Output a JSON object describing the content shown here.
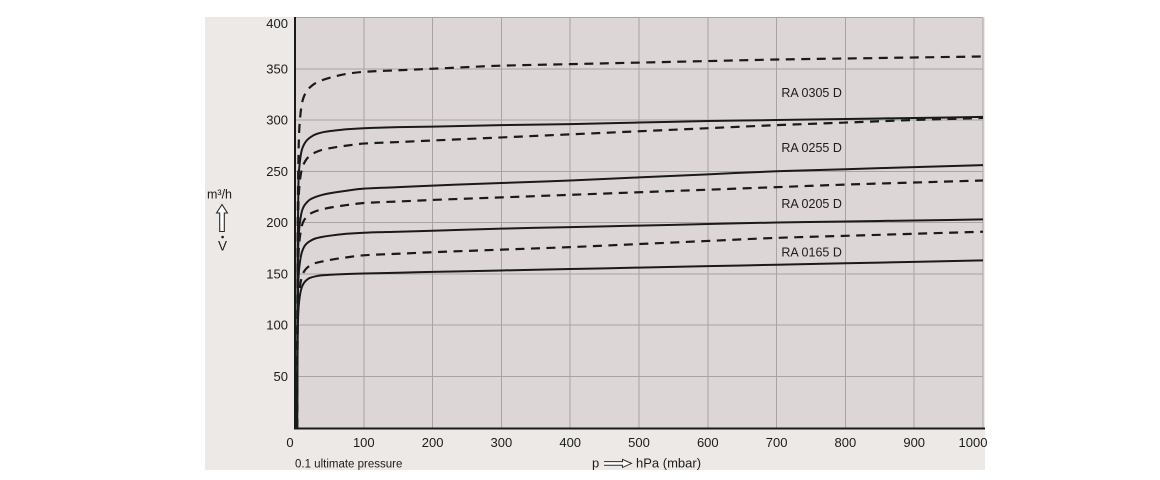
{
  "chart_data": {
    "type": "line",
    "title": "",
    "xlabel_symbol": "p",
    "xlabel_unit": "hPa (mbar)",
    "ylabel_unit": "m³/h",
    "ylabel_symbol": "V",
    "footnote": "0.1 ultimate pressure",
    "xlim": [
      0,
      1000
    ],
    "ylim": [
      0,
      400
    ],
    "x_ticks": [
      0,
      100,
      200,
      300,
      400,
      500,
      600,
      700,
      800,
      900,
      1000
    ],
    "y_ticks": [
      50,
      100,
      150,
      200,
      250,
      300,
      350,
      400
    ],
    "grid": true,
    "legend_position": "inline-labels",
    "colors": {
      "page_background": "#ffffff",
      "band_background": "#ece9e6",
      "plot_background": "#ddd6d6",
      "grid": "#a9a3a4",
      "axis": "#1a1a1a",
      "curve": "#1a1a1a",
      "text": "#1c1c1c"
    },
    "p_points": [
      3,
      3.5,
      4,
      5,
      6,
      8,
      10,
      13,
      17,
      22,
      30,
      40,
      55,
      75,
      100,
      150,
      200,
      300,
      400,
      500,
      600,
      700,
      800,
      900,
      1000
    ],
    "series": [
      {
        "name": "RA 0305 D (dashed)",
        "model": "RA 0305 D",
        "style": "dashed",
        "v": [
          0,
          120,
          200,
          262,
          288,
          306,
          316,
          323,
          328,
          332,
          336,
          339,
          342,
          345,
          347,
          348.5,
          350,
          353,
          354.5,
          356,
          357.5,
          359,
          360,
          361,
          362
        ]
      },
      {
        "name": "RA 0305 D (solid)",
        "model": "RA 0305 D",
        "style": "solid",
        "v": [
          0,
          110,
          180,
          238,
          252,
          264,
          271,
          276,
          280,
          283,
          286,
          288,
          289.5,
          291,
          292,
          293,
          293.5,
          295,
          296,
          297.5,
          299,
          300,
          301,
          302,
          303
        ]
      },
      {
        "name": "RA 0255 D (dashed)",
        "model": "RA 0255 D",
        "style": "dashed",
        "v": [
          0,
          100,
          165,
          218,
          232,
          245,
          252,
          257.5,
          262,
          265.5,
          268.5,
          271,
          273,
          275,
          277,
          278.5,
          280,
          283,
          286,
          289,
          292,
          295,
          297.5,
          300,
          302
        ]
      },
      {
        "name": "RA 0255 D (solid)",
        "model": "RA 0255 D",
        "style": "solid",
        "v": [
          0,
          90,
          150,
          182,
          193,
          204,
          211,
          216,
          219.5,
          222.5,
          225,
          227,
          229,
          231,
          233,
          234.5,
          236,
          238.5,
          241,
          244,
          247,
          250,
          252,
          254,
          256
        ]
      },
      {
        "name": "RA 0205 D (dashed)",
        "model": "RA 0205 D",
        "style": "dashed",
        "v": [
          0,
          80,
          138,
          168,
          179,
          190,
          197,
          202,
          205.5,
          208.5,
          211,
          213,
          215,
          217,
          219,
          220.5,
          222,
          224.5,
          227,
          229.5,
          232,
          234.5,
          237,
          239,
          241
        ]
      },
      {
        "name": "RA 0205 D (solid)",
        "model": "RA 0205 D",
        "style": "solid",
        "v": [
          0,
          70,
          120,
          145,
          155,
          165,
          171,
          176,
          179.5,
          182,
          184.5,
          186,
          187.5,
          189,
          190,
          191,
          192,
          194,
          195.5,
          197,
          198.5,
          200,
          201,
          202,
          203
        ]
      },
      {
        "name": "RA 0165 D (dashed)",
        "model": "RA 0165 D",
        "style": "dashed",
        "v": [
          0,
          60,
          105,
          122,
          131,
          141,
          147,
          152,
          155.5,
          158,
          160.5,
          162,
          164,
          166,
          168,
          169.5,
          171,
          173.5,
          176,
          179,
          182,
          185,
          187,
          189,
          191
        ]
      },
      {
        "name": "RA 0165 D (solid)",
        "model": "RA 0165 D",
        "style": "solid",
        "v": [
          0,
          55,
          95,
          115,
          123,
          132,
          137,
          141,
          144,
          146,
          147.5,
          148.5,
          149.2,
          149.7,
          150.2,
          151,
          151.8,
          153.2,
          154.6,
          156,
          157.4,
          158.8,
          160.2,
          161.6,
          163
        ]
      }
    ],
    "curve_labels": [
      {
        "text": "RA 0305 D",
        "p": 707,
        "v": 327
      },
      {
        "text": "RA 0255 D",
        "p": 707,
        "v": 273.5
      },
      {
        "text": "RA 0205 D",
        "p": 707,
        "v": 218.5
      },
      {
        "text": "RA 0165 D",
        "p": 707,
        "v": 171.5
      }
    ]
  }
}
